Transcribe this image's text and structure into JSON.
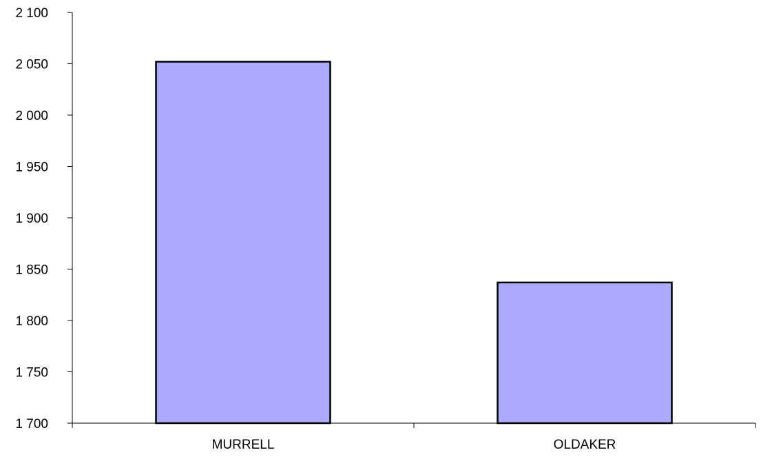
{
  "chart_data": {
    "type": "bar",
    "title": "",
    "xlabel": "",
    "ylabel": "",
    "categories": [
      "MURRELL",
      "OLDAKER"
    ],
    "values": [
      2052,
      1837
    ],
    "ylim": [
      1700,
      2100
    ],
    "yticks": [
      1700,
      1750,
      1800,
      1850,
      1900,
      1950,
      2000,
      2050,
      2100
    ],
    "ytick_labels": [
      "1 700",
      "1 750",
      "1 800",
      "1 850",
      "1 900",
      "1 950",
      "2 000",
      "2 050",
      "2 100"
    ],
    "grid": false,
    "legend": "none",
    "colors": {
      "bar_fill": "#aaaaff",
      "bar_stroke": "#000000",
      "axis": "#000000"
    }
  }
}
